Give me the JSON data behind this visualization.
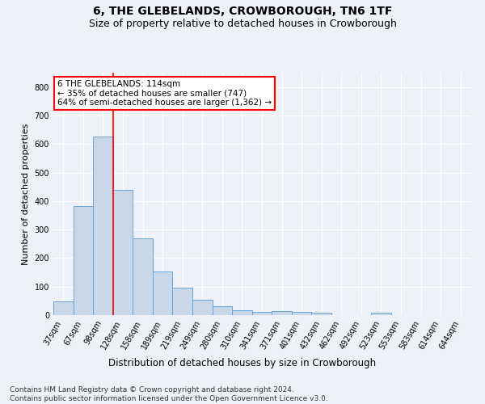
{
  "title": "6, THE GLEBELANDS, CROWBOROUGH, TN6 1TF",
  "subtitle": "Size of property relative to detached houses in Crowborough",
  "xlabel": "Distribution of detached houses by size in Crowborough",
  "ylabel": "Number of detached properties",
  "categories": [
    "37sqm",
    "67sqm",
    "98sqm",
    "128sqm",
    "158sqm",
    "189sqm",
    "219sqm",
    "249sqm",
    "280sqm",
    "310sqm",
    "341sqm",
    "371sqm",
    "401sqm",
    "432sqm",
    "462sqm",
    "492sqm",
    "523sqm",
    "553sqm",
    "583sqm",
    "614sqm",
    "644sqm"
  ],
  "values": [
    47,
    383,
    625,
    438,
    268,
    152,
    95,
    54,
    30,
    16,
    10,
    13,
    12,
    8,
    0,
    0,
    9,
    0,
    0,
    0,
    0
  ],
  "bar_color": "#c8d8e8",
  "bar_edge_color": "#5b9bd5",
  "red_line_x": 2.5,
  "annotation_text": "6 THE GLEBELANDS: 114sqm\n← 35% of detached houses are smaller (747)\n64% of semi-detached houses are larger (1,362) →",
  "annotation_box_color": "white",
  "annotation_box_edge_color": "red",
  "footnote": "Contains HM Land Registry data © Crown copyright and database right 2024.\nContains public sector information licensed under the Open Government Licence v3.0.",
  "ylim": [
    0,
    850
  ],
  "background_color": "#eef2f8",
  "grid_color": "white",
  "title_fontsize": 10,
  "subtitle_fontsize": 9,
  "xlabel_fontsize": 8.5,
  "ylabel_fontsize": 8,
  "tick_fontsize": 7,
  "footnote_fontsize": 6.5,
  "annotation_fontsize": 7.5
}
